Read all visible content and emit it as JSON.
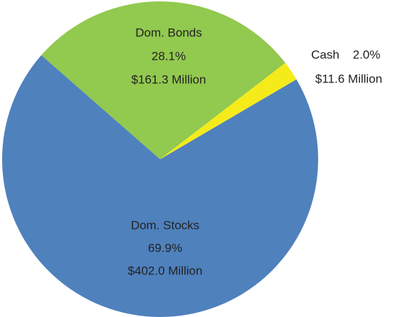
{
  "chart_data": {
    "type": "pie",
    "categories": [
      "Dom. Stocks",
      "Dom. Bonds",
      "Cash"
    ],
    "values": [
      69.9,
      28.1,
      2.0
    ],
    "value_labels": [
      "69.9%",
      "28.1%",
      "2.0%"
    ],
    "amounts": [
      402.0,
      161.3,
      11.6
    ],
    "amount_labels": [
      "$402.0 Million",
      "$161.3 Million",
      "$11.6 Million"
    ],
    "colors": [
      "#4f81bd",
      "#92c94f",
      "#f5eb1a"
    ]
  }
}
